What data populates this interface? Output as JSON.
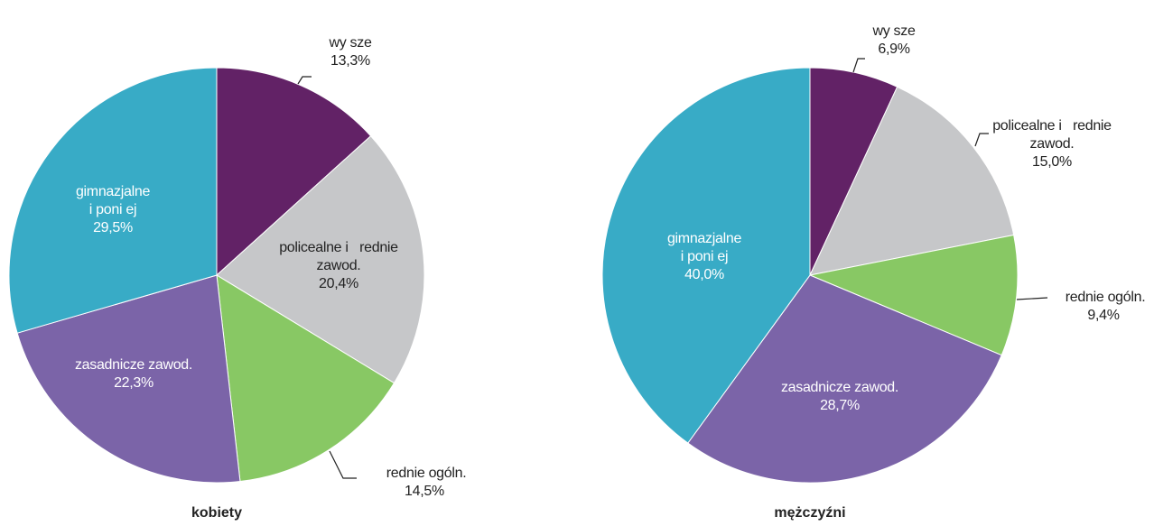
{
  "chart_data": [
    {
      "type": "pie",
      "title": "kobiety",
      "categories": [
        "wy sze",
        "policealne i   rednie\nzawod.",
        " rednie ogóln.",
        "zasadnicze zawod.",
        "gimnazjalne\ni poni ej"
      ],
      "values": [
        13.3,
        20.4,
        14.5,
        22.3,
        29.5
      ],
      "value_labels": [
        "13,3%",
        "20,4%",
        "14,5%",
        "22,3%",
        "29,5%"
      ],
      "colors": [
        "#622266",
        "#c6c7c9",
        "#88c864",
        "#7b64a8",
        "#38abc6"
      ]
    },
    {
      "type": "pie",
      "title": "mężczyźni",
      "categories": [
        "wy sze",
        "policealne i   rednie\nzawod.",
        " rednie ogóln.",
        "zasadnicze zawod.",
        "gimnazjalne\ni poni ej"
      ],
      "values": [
        6.9,
        15.0,
        9.4,
        28.7,
        40.0
      ],
      "value_labels": [
        "6,9%",
        "15,0%",
        "9,4%",
        "28,7%",
        "40,0%"
      ],
      "colors": [
        "#622266",
        "#c6c7c9",
        "#88c864",
        "#7b64a8",
        "#38abc6"
      ]
    }
  ]
}
